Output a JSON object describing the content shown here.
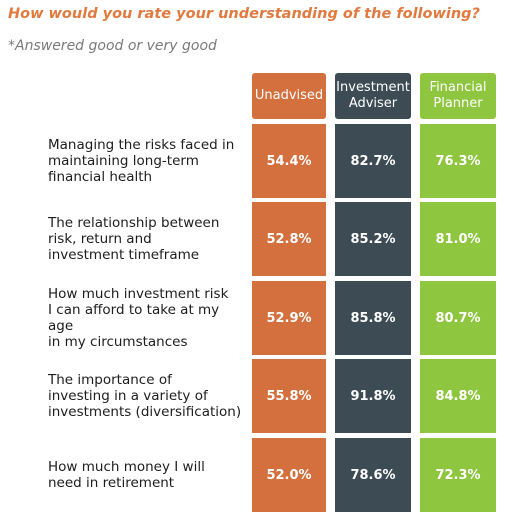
{
  "title": "How would you rate your understanding of the following?",
  "subtitle": "*Answered good or very good",
  "colors": {
    "unadvised": "#d4703d",
    "investment_adviser": "#3d4b55",
    "financial_planner": "#8ec63f",
    "title": "#e07a3f"
  },
  "chart_data": {
    "type": "table",
    "columns": [
      "Unadvised",
      "Investment\nAdviser",
      "Financial\nPlanner"
    ],
    "rows": [
      {
        "label": "Managing the risks faced in\nmaintaining long-term\nfinancial health",
        "values": [
          "54.4%",
          "82.7%",
          "76.3%"
        ]
      },
      {
        "label": "The relationship between\nrisk, return and\ninvestment timeframe",
        "values": [
          "52.8%",
          "85.2%",
          "81.0%"
        ]
      },
      {
        "label": "How much investment risk\nI can afford to take at my age\nin my circumstances",
        "values": [
          "52.9%",
          "85.8%",
          "80.7%"
        ]
      },
      {
        "label": "The importance of\ninvesting in a variety of\ninvestments (diversification)",
        "values": [
          "55.8%",
          "91.8%",
          "84.8%"
        ]
      },
      {
        "label": "How much money I will\nneed in retirement",
        "values": [
          "52.0%",
          "78.6%",
          "72.3%"
        ]
      }
    ]
  }
}
